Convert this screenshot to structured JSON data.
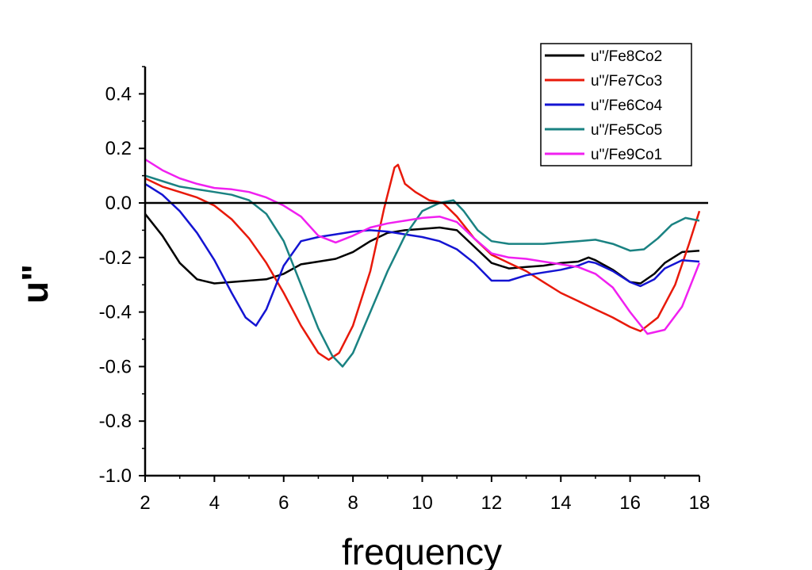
{
  "chart_data": {
    "type": "line",
    "title": "",
    "xlabel": "frequency",
    "ylabel": "u\"",
    "xlim": [
      2,
      18
    ],
    "ylim": [
      -1.0,
      0.5
    ],
    "x_ticks": [
      2,
      4,
      6,
      8,
      10,
      12,
      14,
      16,
      18
    ],
    "x_tick_labels": [
      "2",
      "4",
      "6",
      "8",
      "10",
      "12",
      "14",
      "16",
      "18"
    ],
    "y_ticks": [
      0.4,
      0.2,
      0.0,
      -0.2,
      -0.4,
      -0.6,
      -0.8,
      -1.0
    ],
    "y_tick_labels": [
      "0.4",
      "0.2",
      "0.0",
      "-0.2",
      "-0.4",
      "-0.6",
      "-0.8",
      "-1.0"
    ],
    "reference_line_y": 0.0,
    "legend_position": "top-right",
    "series": [
      {
        "name": "u\"/Fe8Co2",
        "color": "#000000",
        "points": [
          [
            2.0,
            -0.04
          ],
          [
            2.5,
            -0.12
          ],
          [
            3.0,
            -0.22
          ],
          [
            3.5,
            -0.28
          ],
          [
            4.0,
            -0.295
          ],
          [
            4.5,
            -0.29
          ],
          [
            5.0,
            -0.285
          ],
          [
            5.5,
            -0.28
          ],
          [
            6.0,
            -0.26
          ],
          [
            6.5,
            -0.225
          ],
          [
            7.0,
            -0.215
          ],
          [
            7.5,
            -0.205
          ],
          [
            8.0,
            -0.18
          ],
          [
            8.5,
            -0.14
          ],
          [
            9.0,
            -0.11
          ],
          [
            9.5,
            -0.1
          ],
          [
            10.0,
            -0.095
          ],
          [
            10.5,
            -0.09
          ],
          [
            11.0,
            -0.1
          ],
          [
            11.5,
            -0.16
          ],
          [
            12.0,
            -0.22
          ],
          [
            12.5,
            -0.24
          ],
          [
            13.0,
            -0.235
          ],
          [
            13.5,
            -0.23
          ],
          [
            14.0,
            -0.22
          ],
          [
            14.5,
            -0.215
          ],
          [
            14.8,
            -0.2
          ],
          [
            15.0,
            -0.21
          ],
          [
            15.5,
            -0.245
          ],
          [
            16.0,
            -0.29
          ],
          [
            16.3,
            -0.295
          ],
          [
            16.7,
            -0.26
          ],
          [
            17.0,
            -0.22
          ],
          [
            17.5,
            -0.18
          ],
          [
            18.0,
            -0.175
          ]
        ]
      },
      {
        "name": "u\"/Fe7Co3",
        "color": "#e8190a",
        "points": [
          [
            2.0,
            0.09
          ],
          [
            2.5,
            0.06
          ],
          [
            3.0,
            0.04
          ],
          [
            3.5,
            0.02
          ],
          [
            4.0,
            -0.01
          ],
          [
            4.5,
            -0.06
          ],
          [
            5.0,
            -0.13
          ],
          [
            5.5,
            -0.22
          ],
          [
            6.0,
            -0.33
          ],
          [
            6.5,
            -0.45
          ],
          [
            7.0,
            -0.55
          ],
          [
            7.3,
            -0.575
          ],
          [
            7.6,
            -0.55
          ],
          [
            8.0,
            -0.45
          ],
          [
            8.5,
            -0.25
          ],
          [
            8.9,
            -0.02
          ],
          [
            9.2,
            0.13
          ],
          [
            9.3,
            0.14
          ],
          [
            9.5,
            0.07
          ],
          [
            9.8,
            0.04
          ],
          [
            10.2,
            0.01
          ],
          [
            10.6,
            0.0
          ],
          [
            11.0,
            -0.05
          ],
          [
            11.5,
            -0.13
          ],
          [
            12.0,
            -0.19
          ],
          [
            12.5,
            -0.22
          ],
          [
            13.0,
            -0.25
          ],
          [
            13.5,
            -0.29
          ],
          [
            14.0,
            -0.33
          ],
          [
            14.5,
            -0.36
          ],
          [
            15.0,
            -0.39
          ],
          [
            15.5,
            -0.42
          ],
          [
            16.0,
            -0.455
          ],
          [
            16.3,
            -0.47
          ],
          [
            16.8,
            -0.42
          ],
          [
            17.3,
            -0.3
          ],
          [
            17.7,
            -0.15
          ],
          [
            18.0,
            -0.03
          ]
        ]
      },
      {
        "name": "u\"/Fe6Co4",
        "color": "#1414d2",
        "points": [
          [
            2.0,
            0.07
          ],
          [
            2.5,
            0.03
          ],
          [
            3.0,
            -0.03
          ],
          [
            3.5,
            -0.11
          ],
          [
            4.0,
            -0.21
          ],
          [
            4.5,
            -0.33
          ],
          [
            4.9,
            -0.42
          ],
          [
            5.2,
            -0.45
          ],
          [
            5.5,
            -0.39
          ],
          [
            6.0,
            -0.23
          ],
          [
            6.5,
            -0.14
          ],
          [
            7.0,
            -0.125
          ],
          [
            7.5,
            -0.115
          ],
          [
            8.0,
            -0.105
          ],
          [
            8.5,
            -0.1
          ],
          [
            9.0,
            -0.105
          ],
          [
            9.5,
            -0.115
          ],
          [
            10.0,
            -0.125
          ],
          [
            10.5,
            -0.14
          ],
          [
            11.0,
            -0.17
          ],
          [
            11.5,
            -0.22
          ],
          [
            12.0,
            -0.285
          ],
          [
            12.5,
            -0.285
          ],
          [
            13.0,
            -0.265
          ],
          [
            13.5,
            -0.255
          ],
          [
            14.0,
            -0.245
          ],
          [
            14.5,
            -0.23
          ],
          [
            14.8,
            -0.215
          ],
          [
            15.0,
            -0.22
          ],
          [
            15.5,
            -0.25
          ],
          [
            16.0,
            -0.29
          ],
          [
            16.3,
            -0.305
          ],
          [
            16.7,
            -0.28
          ],
          [
            17.0,
            -0.24
          ],
          [
            17.5,
            -0.21
          ],
          [
            18.0,
            -0.215
          ]
        ]
      },
      {
        "name": "u\"/Fe5Co5",
        "color": "#1a8282",
        "points": [
          [
            2.0,
            0.1
          ],
          [
            2.5,
            0.08
          ],
          [
            3.0,
            0.06
          ],
          [
            3.5,
            0.05
          ],
          [
            4.0,
            0.04
          ],
          [
            4.5,
            0.03
          ],
          [
            5.0,
            0.01
          ],
          [
            5.5,
            -0.04
          ],
          [
            6.0,
            -0.14
          ],
          [
            6.5,
            -0.3
          ],
          [
            7.0,
            -0.46
          ],
          [
            7.4,
            -0.56
          ],
          [
            7.7,
            -0.6
          ],
          [
            8.0,
            -0.55
          ],
          [
            8.5,
            -0.4
          ],
          [
            9.0,
            -0.25
          ],
          [
            9.5,
            -0.12
          ],
          [
            10.0,
            -0.03
          ],
          [
            10.5,
            0.0
          ],
          [
            10.9,
            0.01
          ],
          [
            11.2,
            -0.03
          ],
          [
            11.6,
            -0.1
          ],
          [
            12.0,
            -0.14
          ],
          [
            12.5,
            -0.15
          ],
          [
            13.0,
            -0.15
          ],
          [
            13.5,
            -0.15
          ],
          [
            14.0,
            -0.145
          ],
          [
            14.5,
            -0.14
          ],
          [
            15.0,
            -0.135
          ],
          [
            15.5,
            -0.15
          ],
          [
            16.0,
            -0.175
          ],
          [
            16.4,
            -0.17
          ],
          [
            16.8,
            -0.13
          ],
          [
            17.2,
            -0.08
          ],
          [
            17.6,
            -0.055
          ],
          [
            18.0,
            -0.065
          ]
        ]
      },
      {
        "name": "u\"/Fe9Co1",
        "color": "#f020f0",
        "points": [
          [
            2.0,
            0.16
          ],
          [
            2.5,
            0.12
          ],
          [
            3.0,
            0.09
          ],
          [
            3.5,
            0.07
          ],
          [
            4.0,
            0.055
          ],
          [
            4.5,
            0.05
          ],
          [
            5.0,
            0.04
          ],
          [
            5.5,
            0.02
          ],
          [
            6.0,
            -0.01
          ],
          [
            6.5,
            -0.05
          ],
          [
            7.0,
            -0.12
          ],
          [
            7.5,
            -0.145
          ],
          [
            8.0,
            -0.12
          ],
          [
            8.5,
            -0.09
          ],
          [
            9.0,
            -0.075
          ],
          [
            9.5,
            -0.065
          ],
          [
            10.0,
            -0.055
          ],
          [
            10.5,
            -0.05
          ],
          [
            11.0,
            -0.07
          ],
          [
            11.5,
            -0.13
          ],
          [
            12.0,
            -0.185
          ],
          [
            12.5,
            -0.2
          ],
          [
            13.0,
            -0.205
          ],
          [
            13.5,
            -0.215
          ],
          [
            14.0,
            -0.225
          ],
          [
            14.5,
            -0.235
          ],
          [
            15.0,
            -0.26
          ],
          [
            15.5,
            -0.31
          ],
          [
            16.0,
            -0.4
          ],
          [
            16.5,
            -0.48
          ],
          [
            17.0,
            -0.465
          ],
          [
            17.5,
            -0.38
          ],
          [
            18.0,
            -0.22
          ]
        ]
      }
    ]
  }
}
